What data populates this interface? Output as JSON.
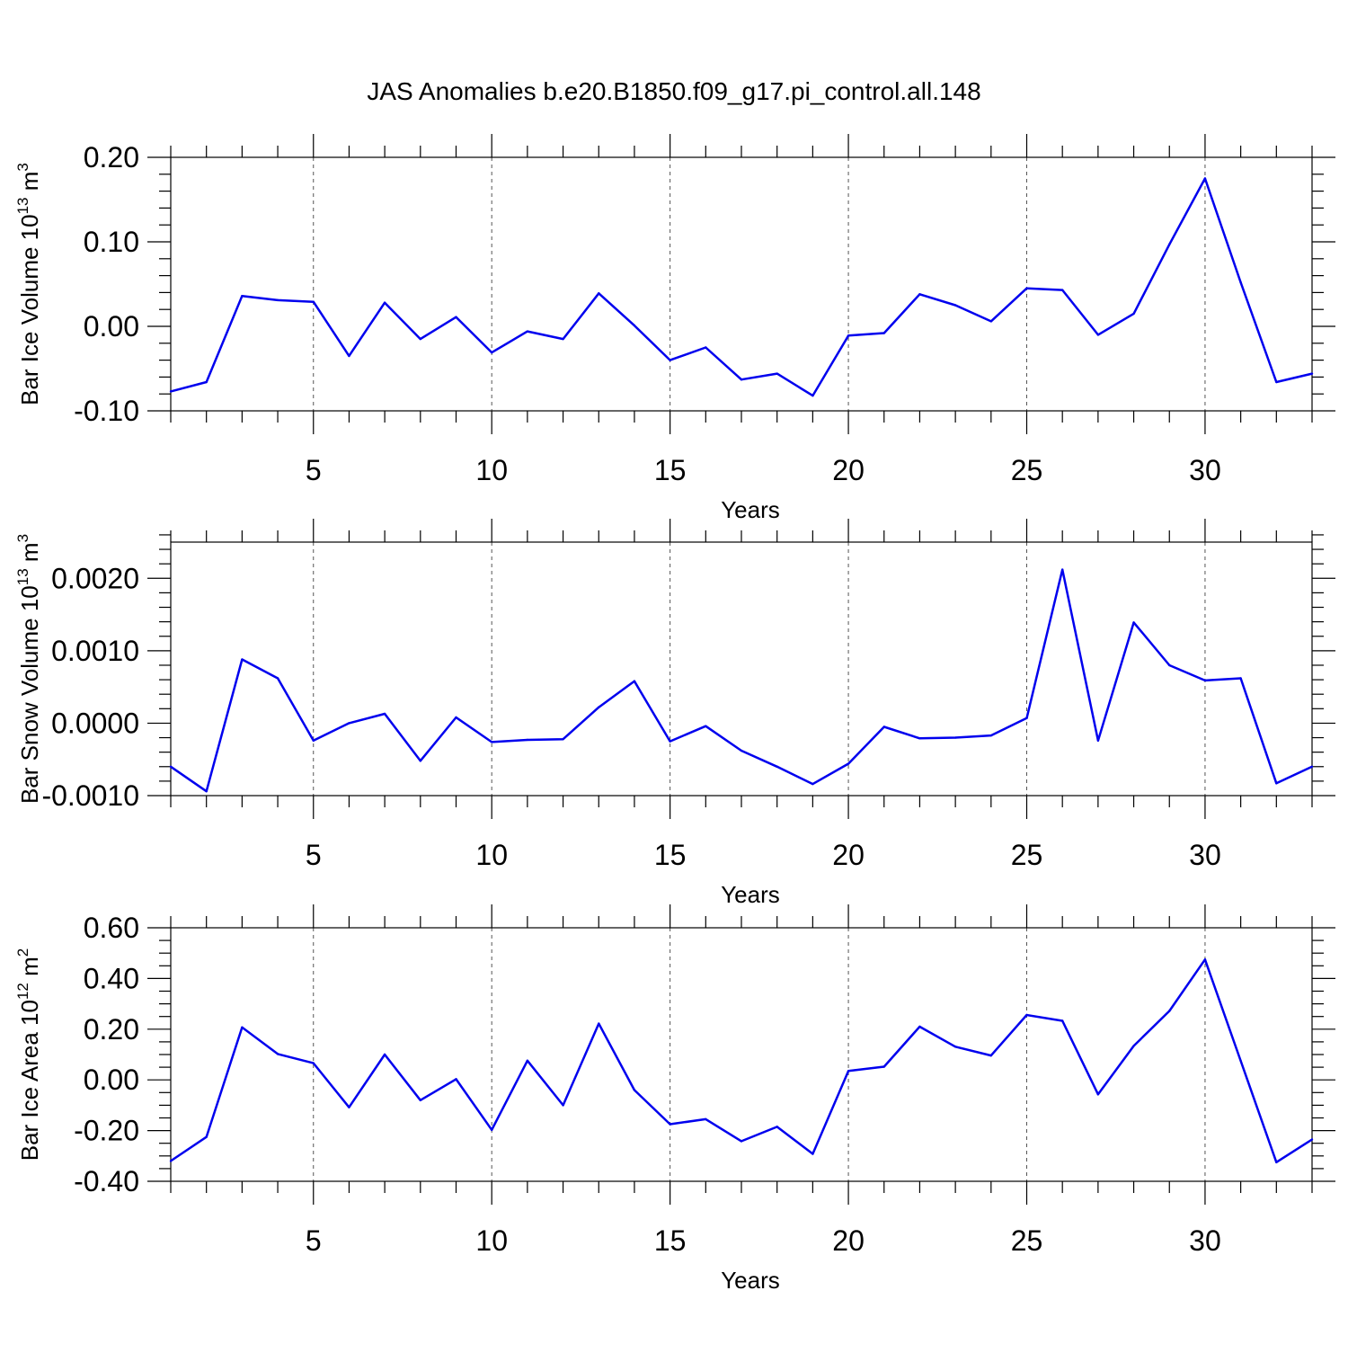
{
  "title": "JAS Anomalies b.e20.B1850.f09_g17.pi_control.all.148",
  "colors": {
    "series": "#0000ee",
    "grid": "#555555",
    "axis": "#000000"
  },
  "chart_data": [
    {
      "type": "line",
      "ylabel_main": "Bar Ice Volume 10",
      "ylabel_exp": "13",
      "ylabel_unit": " m",
      "ylabel_unit_exp": "3",
      "xlabel": "Years",
      "xlim": [
        1,
        33
      ],
      "ylim": [
        -0.1,
        0.2
      ],
      "y_ticks": [
        -0.1,
        0.0,
        0.1,
        0.2
      ],
      "y_tick_labels": [
        "-0.10",
        "0.00",
        "0.10",
        "0.20"
      ],
      "y_minor_step": 0.02,
      "x_ticks": [
        5,
        10,
        15,
        20,
        25,
        30
      ],
      "x_tick_labels": [
        "5",
        "10",
        "15",
        "20",
        "25",
        "30"
      ],
      "grid_x": true,
      "x": [
        1,
        2,
        3,
        4,
        5,
        6,
        7,
        8,
        9,
        10,
        11,
        12,
        13,
        14,
        15,
        16,
        17,
        18,
        19,
        20,
        21,
        22,
        23,
        24,
        25,
        26,
        27,
        28,
        29,
        30,
        31,
        32,
        33
      ],
      "values": [
        -0.077,
        -0.066,
        0.036,
        0.031,
        0.029,
        -0.035,
        0.028,
        -0.015,
        0.011,
        -0.031,
        -0.006,
        -0.015,
        0.039,
        0.001,
        -0.04,
        -0.025,
        -0.063,
        -0.056,
        -0.082,
        -0.011,
        -0.008,
        0.038,
        0.025,
        0.006,
        0.045,
        0.043,
        -0.01,
        0.015,
        0.097,
        0.175,
        0.052,
        -0.066,
        -0.056
      ]
    },
    {
      "type": "line",
      "ylabel_main": "Bar Snow Volume 10",
      "ylabel_exp": "13",
      "ylabel_unit": " m",
      "ylabel_unit_exp": "3",
      "xlabel": "Years",
      "xlim": [
        1,
        33
      ],
      "ylim": [
        -0.001,
        0.0025
      ],
      "y_ticks": [
        -0.001,
        0.0,
        0.001,
        0.002
      ],
      "y_tick_labels": [
        "-0.0010",
        "0.0000",
        "0.0010",
        "0.0020"
      ],
      "y_minor_step": 0.0002,
      "x_ticks": [
        5,
        10,
        15,
        20,
        25,
        30
      ],
      "x_tick_labels": [
        "5",
        "10",
        "15",
        "20",
        "25",
        "30"
      ],
      "grid_x": true,
      "x": [
        1,
        2,
        3,
        4,
        5,
        6,
        7,
        8,
        9,
        10,
        11,
        12,
        13,
        14,
        15,
        16,
        17,
        18,
        19,
        20,
        21,
        22,
        23,
        24,
        25,
        26,
        27,
        28,
        29,
        30,
        31,
        32,
        33
      ],
      "values": [
        -0.0006,
        -0.00094,
        0.00088,
        0.00062,
        -0.00024,
        0.0,
        0.00013,
        -0.00052,
        8e-05,
        -0.00026,
        -0.00023,
        -0.00022,
        0.00022,
        0.00058,
        -0.00025,
        -4e-05,
        -0.00038,
        -0.0006,
        -0.00084,
        -0.00056,
        -5e-05,
        -0.00021,
        -0.0002,
        -0.00017,
        7e-05,
        0.00212,
        -0.00024,
        0.00139,
        0.0008,
        0.00059,
        0.00062,
        -0.00083,
        -0.0006
      ]
    },
    {
      "type": "line",
      "ylabel_main": "Bar Ice Area 10",
      "ylabel_exp": "12",
      "ylabel_unit": " m",
      "ylabel_unit_exp": "2",
      "xlabel": "Years",
      "xlim": [
        1,
        33
      ],
      "ylim": [
        -0.4,
        0.6
      ],
      "y_ticks": [
        -0.4,
        -0.2,
        0.0,
        0.2,
        0.4,
        0.6
      ],
      "y_tick_labels": [
        "-0.40",
        "-0.20",
        "0.00",
        "0.20",
        "0.40",
        "0.60"
      ],
      "y_minor_step": 0.05,
      "x_ticks": [
        5,
        10,
        15,
        20,
        25,
        30
      ],
      "x_tick_labels": [
        "5",
        "10",
        "15",
        "20",
        "25",
        "30"
      ],
      "grid_x": true,
      "x": [
        1,
        2,
        3,
        4,
        5,
        6,
        7,
        8,
        9,
        10,
        11,
        12,
        13,
        14,
        15,
        16,
        17,
        18,
        19,
        20,
        21,
        22,
        23,
        24,
        25,
        26,
        27,
        28,
        29,
        30,
        31,
        32,
        33
      ],
      "values": [
        -0.32,
        -0.225,
        0.207,
        0.102,
        0.066,
        -0.108,
        0.1,
        -0.08,
        0.003,
        -0.197,
        0.076,
        -0.1,
        0.222,
        -0.04,
        -0.175,
        -0.155,
        -0.242,
        -0.185,
        -0.292,
        0.035,
        0.052,
        0.21,
        0.131,
        0.096,
        0.256,
        0.233,
        -0.057,
        0.134,
        0.272,
        0.475,
        0.075,
        -0.325,
        -0.235
      ]
    }
  ]
}
